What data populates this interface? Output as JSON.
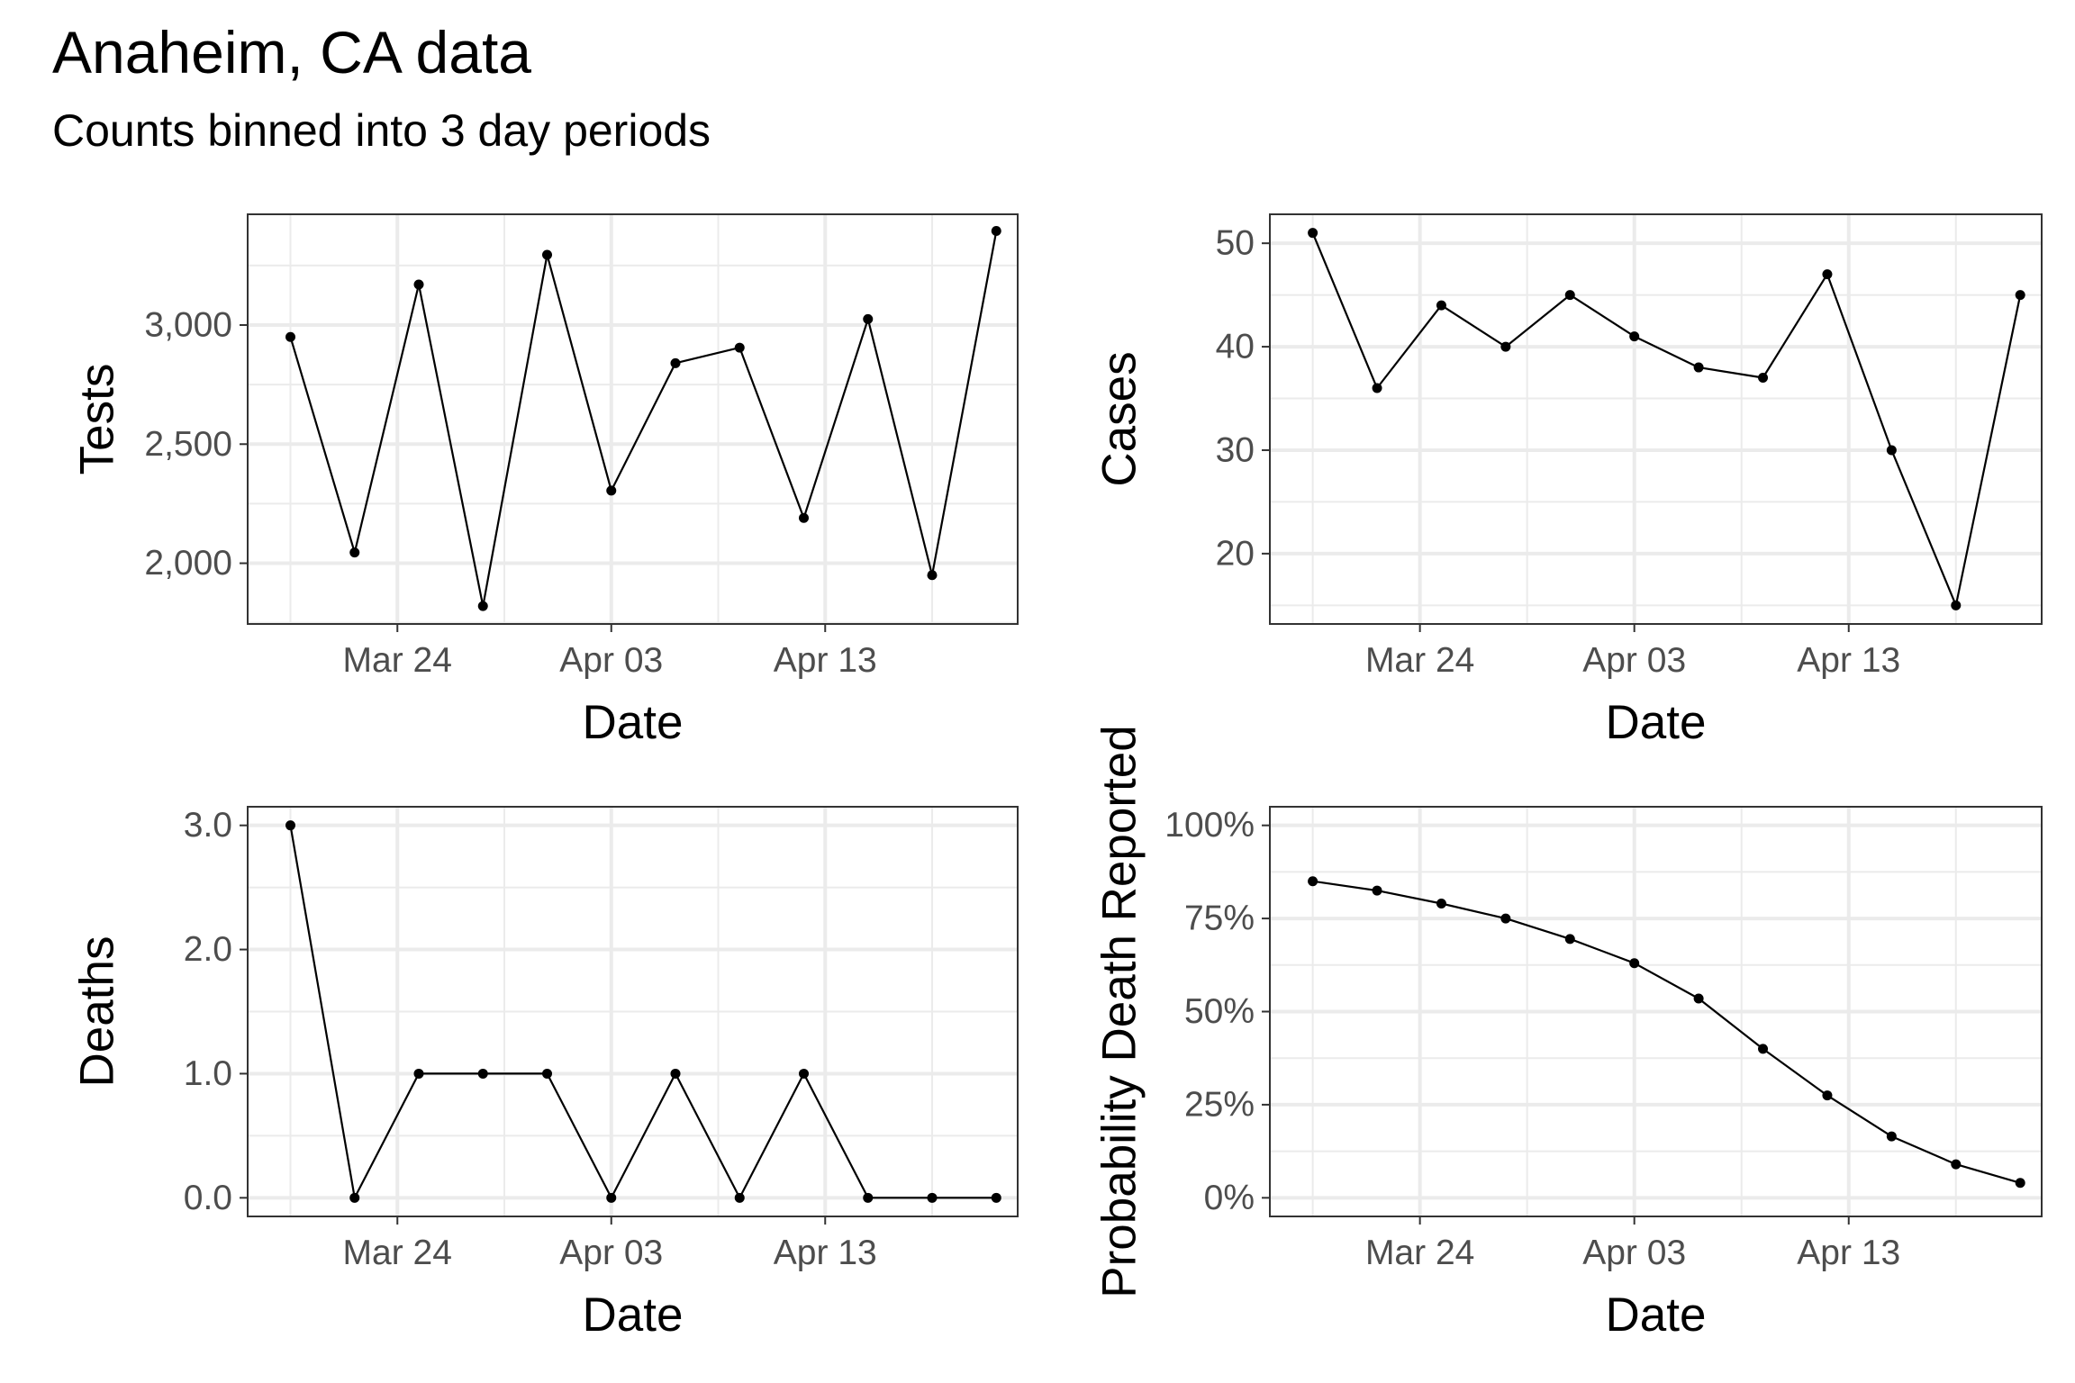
{
  "title": "Anaheim, CA data",
  "subtitle": "Counts binned into 3 day periods",
  "chart_data": [
    {
      "type": "line",
      "xlabel": "Date",
      "ylabel": "Tests",
      "x": [
        "2020-03-19",
        "2020-03-22",
        "2020-03-25",
        "2020-03-28",
        "2020-03-31",
        "2020-04-03",
        "2020-04-06",
        "2020-04-09",
        "2020-04-12",
        "2020-04-15",
        "2020-04-18",
        "2020-04-21"
      ],
      "values": [
        2950,
        2045,
        3170,
        1820,
        3295,
        2305,
        2840,
        2905,
        2190,
        3025,
        1950,
        3395
      ],
      "ylim": [
        1745,
        3465
      ],
      "yticks": [
        2000,
        2500,
        3000
      ],
      "yticklabels": [
        "2,000",
        "2,500",
        "3,000"
      ],
      "xlim": [
        "2020-03-17",
        "2020-04-22"
      ],
      "xticks": [
        "2020-03-24",
        "2020-04-03",
        "2020-04-13"
      ],
      "xticklabels": [
        "Mar 24",
        "Apr 03",
        "Apr 13"
      ],
      "grid": true
    },
    {
      "type": "line",
      "xlabel": "Date",
      "ylabel": "Cases",
      "x": [
        "2020-03-19",
        "2020-03-22",
        "2020-03-25",
        "2020-03-28",
        "2020-03-31",
        "2020-04-03",
        "2020-04-06",
        "2020-04-09",
        "2020-04-12",
        "2020-04-15",
        "2020-04-18",
        "2020-04-21"
      ],
      "values": [
        51,
        36,
        44,
        40,
        45,
        41,
        38,
        37,
        47,
        30,
        15,
        45
      ],
      "ylim": [
        13.2,
        52.8
      ],
      "yticks": [
        20,
        30,
        40,
        50
      ],
      "yticklabels": [
        "20",
        "30",
        "40",
        "50"
      ],
      "xlim": [
        "2020-03-17",
        "2020-04-22"
      ],
      "xticks": [
        "2020-03-24",
        "2020-04-03",
        "2020-04-13"
      ],
      "xticklabels": [
        "Mar 24",
        "Apr 03",
        "Apr 13"
      ],
      "grid": true
    },
    {
      "type": "line",
      "xlabel": "Date",
      "ylabel": "Deaths",
      "x": [
        "2020-03-19",
        "2020-03-22",
        "2020-03-25",
        "2020-03-28",
        "2020-03-31",
        "2020-04-03",
        "2020-04-06",
        "2020-04-09",
        "2020-04-12",
        "2020-04-15",
        "2020-04-18",
        "2020-04-21"
      ],
      "values": [
        3,
        0,
        1,
        1,
        1,
        0,
        1,
        0,
        1,
        0,
        0,
        0
      ],
      "ylim": [
        -0.15,
        3.15
      ],
      "yticks": [
        0,
        1,
        2,
        3
      ],
      "yticklabels": [
        "0.0",
        "1.0",
        "2.0",
        "3.0"
      ],
      "xlim": [
        "2020-03-17",
        "2020-04-22"
      ],
      "xticks": [
        "2020-03-24",
        "2020-04-03",
        "2020-04-13"
      ],
      "xticklabels": [
        "Mar 24",
        "Apr 03",
        "Apr 13"
      ],
      "grid": true
    },
    {
      "type": "line",
      "xlabel": "Date",
      "ylabel": "Probability Death Reported",
      "x": [
        "2020-03-19",
        "2020-03-22",
        "2020-03-25",
        "2020-03-28",
        "2020-03-31",
        "2020-04-03",
        "2020-04-06",
        "2020-04-09",
        "2020-04-12",
        "2020-04-15",
        "2020-04-18",
        "2020-04-21"
      ],
      "values": [
        0.85,
        0.825,
        0.79,
        0.75,
        0.695,
        0.63,
        0.535,
        0.4,
        0.275,
        0.165,
        0.09,
        0.04
      ],
      "ylim": [
        -0.05,
        1.05
      ],
      "yticks": [
        0,
        0.25,
        0.5,
        0.75,
        1.0
      ],
      "yticklabels": [
        "0%",
        "25%",
        "50%",
        "75%",
        "100%"
      ],
      "xlim": [
        "2020-03-17",
        "2020-04-22"
      ],
      "xticks": [
        "2020-03-24",
        "2020-04-03",
        "2020-04-13"
      ],
      "xticklabels": [
        "Mar 24",
        "Apr 03",
        "Apr 13"
      ],
      "grid": true
    }
  ],
  "colors": {
    "line": "#000000",
    "grid": "#ebebeb",
    "panel_border": "#333333",
    "tick_text": "#4d4d4d"
  }
}
